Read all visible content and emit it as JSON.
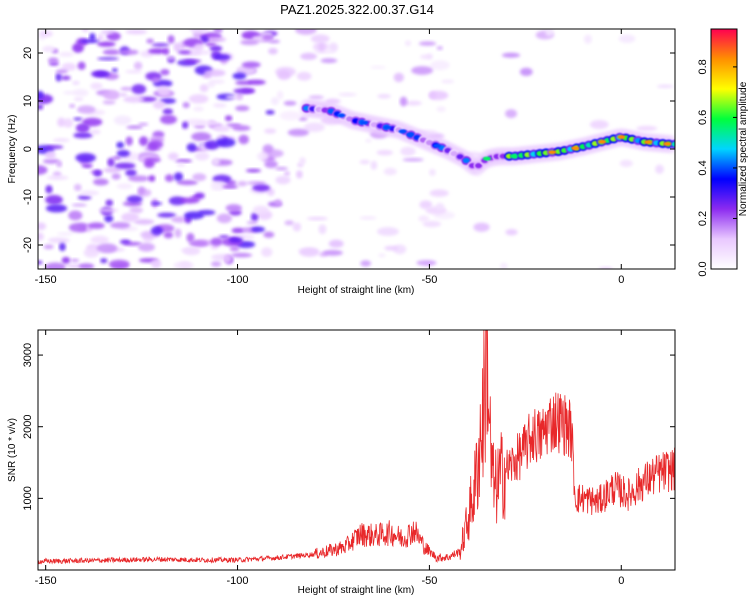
{
  "chart_data": [
    {
      "type": "heatmap",
      "title": "PAZ1.2025.322.00.37.G14",
      "xlabel": "Height of straight line (km)",
      "ylabel": "Frequency (Hz)",
      "xlim": [
        -152,
        14
      ],
      "ylim": [
        -25,
        25
      ],
      "xticks": [
        -150,
        -100,
        -50,
        0
      ],
      "xtick_labels": [
        "-150",
        "-100",
        "-50",
        "0"
      ],
      "yticks": [
        -20,
        -10,
        0,
        10,
        20
      ],
      "ytick_labels": [
        "-20",
        "-10",
        "0",
        "10",
        "20"
      ],
      "ridge": {
        "x": [
          -82,
          -76,
          -70,
          -64,
          -58,
          -52,
          -46,
          -41,
          -38,
          -35,
          -32,
          -28,
          -22,
          -16,
          -10,
          -5,
          0,
          6,
          13
        ],
        "y": [
          8.5,
          8,
          6,
          5,
          4,
          2,
          0,
          -2,
          -4,
          -2,
          -1.5,
          -1.5,
          -1,
          -0.5,
          0.5,
          1.5,
          2.5,
          1.5,
          1
        ]
      },
      "colorbar": {
        "label": "Normalized spectral amplitude",
        "range": [
          0,
          0.95
        ],
        "ticks": [
          0.0,
          0.2,
          0.4,
          0.6,
          0.8
        ],
        "tick_labels": [
          "0.0",
          "0.2",
          "0.4",
          "0.6",
          "0.8"
        ],
        "colors": [
          "#ffffff",
          "#e9c8ff",
          "#8c2bf0",
          "#0000ff",
          "#00d5ff",
          "#00ff3c",
          "#ffff00",
          "#ff9000",
          "#ff0050"
        ]
      }
    },
    {
      "type": "line",
      "xlabel": "Height of straight line (km)",
      "ylabel": "SNR (10 * v/v)",
      "xlim": [
        -152,
        14
      ],
      "ylim": [
        0,
        3350
      ],
      "xticks": [
        -150,
        -100,
        -50,
        0
      ],
      "xtick_labels": [
        "-150",
        "-100",
        "-50",
        "0"
      ],
      "yticks": [
        1000,
        2000,
        3000
      ],
      "ytick_labels": [
        "1000",
        "2000",
        "3000"
      ],
      "series": [
        {
          "name": "SNR",
          "color": "#e8282a",
          "x": [
            -152,
            -140,
            -130,
            -120,
            -110,
            -100,
            -90,
            -80,
            -72,
            -68,
            -64,
            -60,
            -57,
            -54,
            -51,
            -48,
            -45,
            -42,
            -40,
            -38,
            -36,
            -35,
            -34,
            -33,
            -31,
            -28,
            -25,
            -23,
            -21,
            -19,
            -17,
            -15,
            -13,
            -12,
            -10,
            -6,
            -2,
            2,
            5,
            8,
            10,
            13
          ],
          "y": [
            120,
            130,
            140,
            150,
            140,
            140,
            170,
            220,
            320,
            500,
            480,
            520,
            440,
            560,
            300,
            170,
            180,
            260,
            700,
            1200,
            2200,
            3300,
            1500,
            1100,
            1350,
            1500,
            1700,
            1900,
            1850,
            2050,
            2100,
            2050,
            1950,
            1000,
            1000,
            950,
            1150,
            1050,
            1200,
            1300,
            1350,
            1400
          ]
        }
      ]
    }
  ]
}
